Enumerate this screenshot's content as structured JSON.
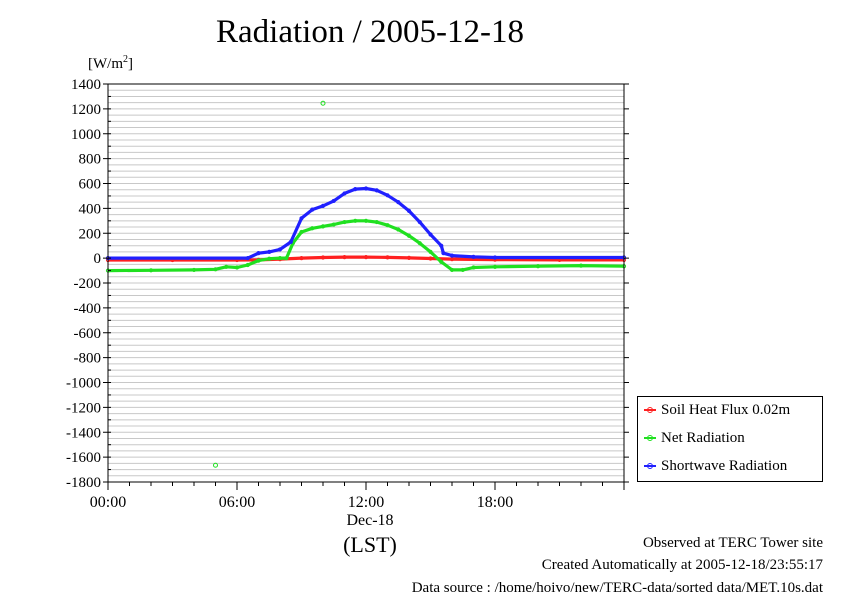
{
  "title": "Radiation / 2005-12-18",
  "unit_label": "[W/m²]",
  "date_label": "Dec-18",
  "tz_label": "(LST)",
  "footer": {
    "line1": "Observed at TERC Tower site",
    "line2": "Created Automatically at 2005-12-18/23:55:17",
    "line3": "Data source : /home/hoivo/new/TERC-data/sorted  data/MET.10s.dat"
  },
  "chart_data": {
    "type": "line",
    "grid": true,
    "legend_position": "bottom-right, outside plot",
    "xlim": [
      0,
      24
    ],
    "ylim": [
      -1800,
      1400
    ],
    "yticks": [
      1400,
      1200,
      1000,
      800,
      600,
      400,
      200,
      0,
      -200,
      -400,
      -600,
      -800,
      -1000,
      -1200,
      -1400,
      -1600,
      -1800
    ],
    "ytick_labels": [
      "1400",
      "1200",
      "1000",
      "800",
      "600",
      "400",
      "200",
      "0",
      "-200",
      "-400",
      "-600",
      "-800",
      "-1000",
      "-1200",
      "-1400",
      "-1600",
      "-1800"
    ],
    "xticks": [
      0,
      6,
      12,
      18
    ],
    "xtick_labels": [
      "00:00",
      "06:00",
      "12:00",
      "18:00"
    ],
    "series": [
      {
        "name": "Soil Heat Flux 0.02m",
        "color": "#ff2020",
        "points": [
          [
            0,
            -15
          ],
          [
            3,
            -15
          ],
          [
            6,
            -15
          ],
          [
            7,
            -14
          ],
          [
            8,
            -8
          ],
          [
            9,
            0
          ],
          [
            10,
            5
          ],
          [
            11,
            8
          ],
          [
            12,
            8
          ],
          [
            13,
            6
          ],
          [
            14,
            2
          ],
          [
            15,
            -3
          ],
          [
            16,
            -8
          ],
          [
            18,
            -12
          ],
          [
            21,
            -14
          ],
          [
            24,
            -14
          ]
        ]
      },
      {
        "name": "Net Radiation",
        "color": "#20e020",
        "points": [
          [
            0,
            -100
          ],
          [
            2,
            -98
          ],
          [
            4,
            -95
          ],
          [
            5,
            -90
          ],
          [
            5.5,
            -70
          ],
          [
            6,
            -75
          ],
          [
            6.5,
            -55
          ],
          [
            7,
            -20
          ],
          [
            7.5,
            -5
          ],
          [
            8,
            0
          ],
          [
            8.3,
            0
          ],
          [
            8.6,
            120
          ],
          [
            9,
            210
          ],
          [
            9.5,
            240
          ],
          [
            10,
            255
          ],
          [
            10.5,
            270
          ],
          [
            11,
            290
          ],
          [
            11.5,
            300
          ],
          [
            12,
            300
          ],
          [
            12.5,
            290
          ],
          [
            13,
            265
          ],
          [
            13.5,
            230
          ],
          [
            14,
            180
          ],
          [
            14.5,
            120
          ],
          [
            15,
            50
          ],
          [
            15.5,
            -30
          ],
          [
            16,
            -95
          ],
          [
            16.5,
            -95
          ],
          [
            17,
            -75
          ],
          [
            18,
            -70
          ],
          [
            20,
            -65
          ],
          [
            22,
            -60
          ],
          [
            24,
            -65
          ]
        ],
        "outliers": [
          [
            10,
            1245
          ],
          [
            5,
            -1665
          ]
        ]
      },
      {
        "name": "Shortwave Radiation",
        "color": "#2020ff",
        "points": [
          [
            0,
            0
          ],
          [
            6.5,
            0
          ],
          [
            7,
            40
          ],
          [
            7.5,
            50
          ],
          [
            8,
            70
          ],
          [
            8.5,
            130
          ],
          [
            9,
            320
          ],
          [
            9.5,
            390
          ],
          [
            10,
            420
          ],
          [
            10.5,
            460
          ],
          [
            11,
            520
          ],
          [
            11.5,
            555
          ],
          [
            12,
            560
          ],
          [
            12.5,
            545
          ],
          [
            13,
            505
          ],
          [
            13.5,
            450
          ],
          [
            14,
            380
          ],
          [
            14.5,
            290
          ],
          [
            15,
            190
          ],
          [
            15.5,
            100
          ],
          [
            15.6,
            40
          ],
          [
            16,
            20
          ],
          [
            17,
            10
          ],
          [
            18,
            5
          ],
          [
            24,
            5
          ]
        ]
      }
    ]
  }
}
